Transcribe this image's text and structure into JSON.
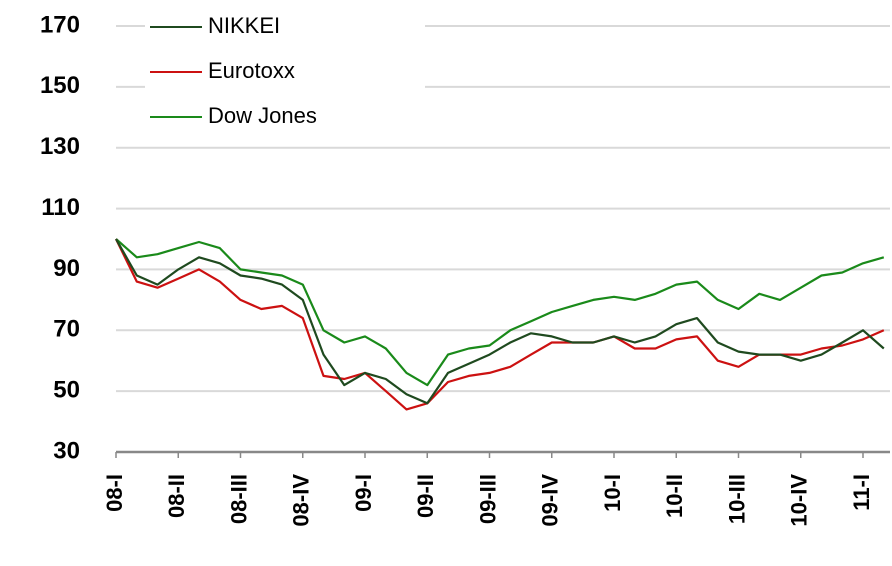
{
  "chart_data": {
    "type": "line",
    "categories": [
      "08-I",
      null,
      null,
      "08-II",
      null,
      null,
      "08-III",
      null,
      null,
      "08-IV",
      null,
      null,
      "09-I",
      null,
      null,
      "09-II",
      null,
      null,
      "09-III",
      null,
      null,
      "09-IV",
      null,
      null,
      "10-I",
      null,
      null,
      "10-II",
      null,
      null,
      "10-III",
      null,
      null,
      "10-IV",
      null,
      null,
      "11-I",
      null
    ],
    "series": [
      {
        "name": "NIKKEI",
        "color": "#1f4a1f",
        "values": [
          100,
          88,
          85,
          90,
          94,
          92,
          88,
          87,
          85,
          80,
          62,
          52,
          56,
          54,
          49,
          46,
          56,
          59,
          62,
          66,
          69,
          68,
          66,
          66,
          68,
          66,
          68,
          72,
          74,
          66,
          63,
          62,
          62,
          60,
          62,
          66,
          70,
          64
        ]
      },
      {
        "name": "Eurotoxx",
        "color": "#cc1111",
        "values": [
          100,
          86,
          84,
          87,
          90,
          86,
          80,
          77,
          78,
          74,
          55,
          54,
          56,
          50,
          44,
          46,
          53,
          55,
          56,
          58,
          62,
          66,
          66,
          66,
          68,
          64,
          64,
          67,
          68,
          60,
          58,
          62,
          62,
          62,
          64,
          65,
          67,
          70
        ]
      },
      {
        "name": "Dow Jones",
        "color": "#1a8a1a",
        "values": [
          100,
          94,
          95,
          97,
          99,
          97,
          90,
          89,
          88,
          85,
          70,
          66,
          68,
          64,
          56,
          52,
          62,
          64,
          65,
          70,
          73,
          76,
          78,
          80,
          81,
          80,
          82,
          85,
          86,
          80,
          77,
          82,
          80,
          84,
          88,
          89,
          92,
          94
        ]
      }
    ],
    "ylim": [
      30,
      170
    ],
    "yticks": [
      30,
      50,
      70,
      90,
      110,
      130,
      150,
      170
    ],
    "grid": true,
    "legend": "upper left"
  }
}
